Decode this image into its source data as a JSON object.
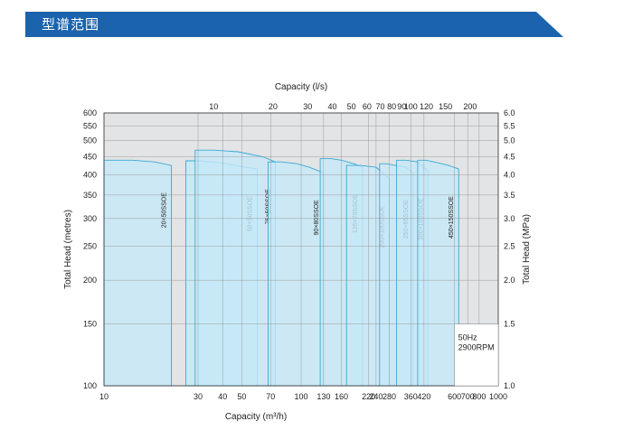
{
  "header": {
    "title": "型谱范围",
    "banner_color": "#1b63ad"
  },
  "chart_data": {
    "type": "area",
    "title": "",
    "top_xlabel": "Capacity (l/s)",
    "xlabel": "Capacity (m³/h)",
    "ylabel_left": "Total Head (metres)",
    "ylabel_right": "Total Head (MPa)",
    "x_scale": "log",
    "y_scale": "log",
    "xlim": [
      10,
      1000
    ],
    "ylim": [
      100,
      600
    ],
    "grid": true,
    "bottom_ticks": [
      10,
      30,
      40,
      50,
      70,
      100,
      130,
      160,
      220,
      240,
      280,
      360,
      420,
      600,
      700,
      800,
      1000
    ],
    "top_ticks_ls": [
      10,
      20,
      30,
      40,
      50,
      60,
      70,
      80,
      90,
      100,
      120,
      150,
      200
    ],
    "left_ticks": [
      100,
      150,
      200,
      250,
      300,
      350,
      400,
      450,
      500,
      550,
      600
    ],
    "right_ticks_mpa": [
      "1.0",
      "1.5",
      "2.0",
      "2.5",
      "3.0",
      "3.5",
      "4.0",
      "4.5",
      "5.0",
      "5.5",
      "6.0"
    ],
    "annotation": [
      "50Hz",
      "2900RPM"
    ],
    "series": [
      {
        "name": "20×50SSOE",
        "x": [
          10,
          14,
          18,
          22
        ],
        "y": [
          440,
          440,
          435,
          425
        ]
      },
      {
        "name": "50×50SSOE",
        "x": [
          26,
          30,
          40,
          52,
          60
        ],
        "y": [
          438,
          438,
          432,
          420,
          415
        ]
      },
      {
        "name": "75×50SSOE",
        "x": [
          29,
          36,
          48,
          64,
          74
        ],
        "y": [
          470,
          470,
          465,
          450,
          435
        ]
      },
      {
        "name": "90×80SSOE",
        "x": [
          68,
          80,
          95,
          110,
          130
        ],
        "y": [
          435,
          435,
          430,
          420,
          405
        ]
      },
      {
        "name": "135×70SSOE",
        "x": [
          125,
          140,
          160,
          185,
          205
        ],
        "y": [
          445,
          445,
          440,
          430,
          420
        ]
      },
      {
        "name": "200×100SSOE",
        "x": [
          170,
          200,
          240,
          280
        ],
        "y": [
          425,
          425,
          420,
          390
        ]
      },
      {
        "name": "250×65SSOE",
        "x": [
          250,
          270,
          300,
          340,
          370
        ],
        "y": [
          430,
          430,
          425,
          420,
          405
        ]
      },
      {
        "name": "300×100SSOE",
        "x": [
          305,
          340,
          390,
          440
        ],
        "y": [
          440,
          440,
          435,
          410
        ]
      },
      {
        "name": "450×150SSOE",
        "x": [
          390,
          430,
          500,
          560,
          630
        ],
        "y": [
          440,
          440,
          432,
          425,
          415
        ]
      }
    ],
    "fill_color": "#c6e9f7",
    "line_color": "#3aa9d4"
  }
}
